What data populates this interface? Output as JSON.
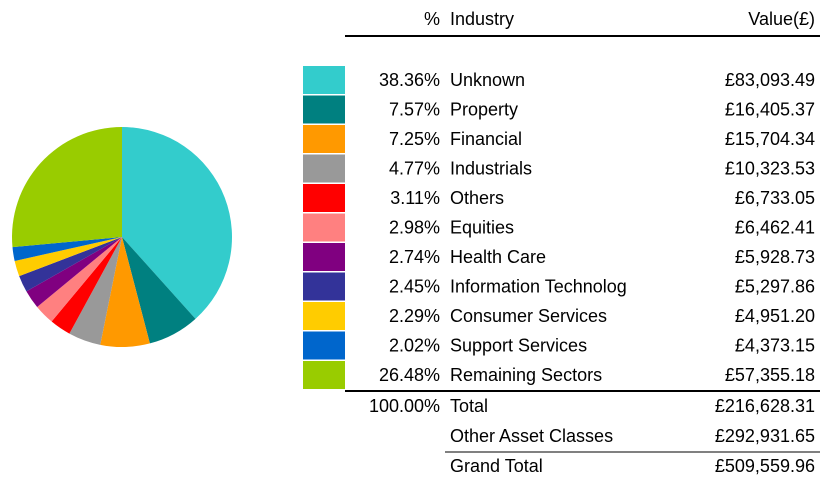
{
  "chart_data": {
    "type": "pie",
    "categories": [
      "Unknown",
      "Property",
      "Financial",
      "Industrials",
      "Others",
      "Equities",
      "Health Care",
      "Information Technolog",
      "Consumer Services",
      "Support Services",
      "Remaining Sectors"
    ],
    "values": [
      38.36,
      7.57,
      7.25,
      4.77,
      3.11,
      2.98,
      2.74,
      2.45,
      2.29,
      2.02,
      26.48
    ],
    "value_labels": [
      "38.36%",
      "7.57%",
      "7.25%",
      "4.77%",
      "3.11%",
      "2.98%",
      "2.74%",
      "2.45%",
      "2.29%",
      "2.02%",
      "26.48%"
    ],
    "colors": [
      "#33cccc",
      "#008080",
      "#ff9900",
      "#999999",
      "#ff0000",
      "#ff8080",
      "#800080",
      "#333399",
      "#ffcc00",
      "#0066cc",
      "#99cc00"
    ]
  },
  "table": {
    "headers": [
      "%",
      "Industry",
      "Value(£)"
    ],
    "amounts": [
      "£83,093.49",
      "£16,405.37",
      "£15,704.34",
      "£10,323.53",
      "£6,733.05",
      "£6,462.41",
      "£5,928.73",
      "£5,297.86",
      "£4,951.20",
      "£4,373.15",
      "£57,355.18"
    ],
    "totals": [
      [
        "100.00%",
        "Total",
        "£216,628.31"
      ],
      [
        "",
        "Other Asset Classes",
        "£292,931.65"
      ],
      [
        "",
        "Grand Total",
        "£509,559.96"
      ]
    ]
  }
}
